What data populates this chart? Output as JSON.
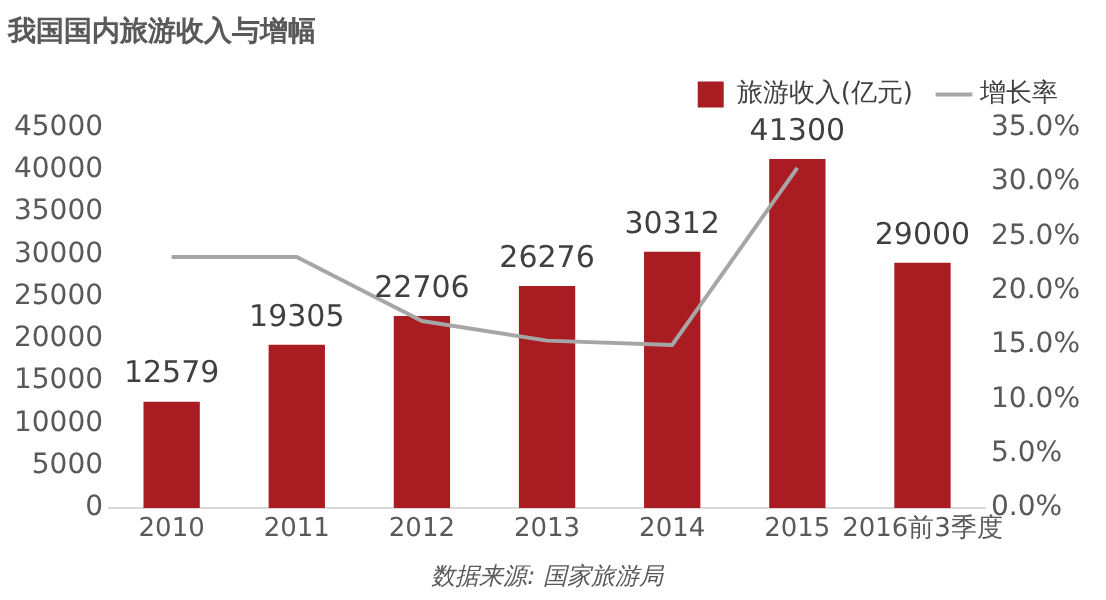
{
  "chart_data": {
    "type": "bar",
    "title": "我国国内旅游收入与增幅",
    "categories": [
      "2010",
      "2011",
      "2012",
      "2013",
      "2014",
      "2015",
      "2016前3季度"
    ],
    "series": [
      {
        "name": "旅游收入(亿元)",
        "color": "#a91c22",
        "values": [
          12579,
          19305,
          22706,
          26276,
          30312,
          41300,
          29000
        ],
        "value_labels": [
          "12579",
          "19305",
          "22706",
          "26276",
          "30312",
          "41300",
          "29000"
        ]
      },
      {
        "name": "增长率",
        "type": "line",
        "axis": "y2",
        "color": "#a6a6a6",
        "values": [
          23.1,
          23.1,
          17.2,
          15.4,
          15.0,
          31.3,
          null
        ]
      }
    ],
    "ylim": [
      0,
      45000
    ],
    "yticks": [
      0,
      5000,
      10000,
      15000,
      20000,
      25000,
      30000,
      35000,
      40000,
      45000
    ],
    "y2lim": [
      0,
      35
    ],
    "y2ticks": [
      {
        "value": 0,
        "label": "0.0%"
      },
      {
        "value": 5,
        "label": "5.0%"
      },
      {
        "value": 10,
        "label": "10.0%"
      },
      {
        "value": 15,
        "label": "15.0%"
      },
      {
        "value": 20,
        "label": "20.0%"
      },
      {
        "value": 25,
        "label": "25.0%"
      },
      {
        "value": 30,
        "label": "30.0%"
      },
      {
        "value": 35,
        "label": "35.0%"
      }
    ],
    "legend": "top right",
    "grid": false,
    "marker": "none",
    "line_style": "solid",
    "annotations": [
      "数据来源: 国家旅游局"
    ]
  }
}
